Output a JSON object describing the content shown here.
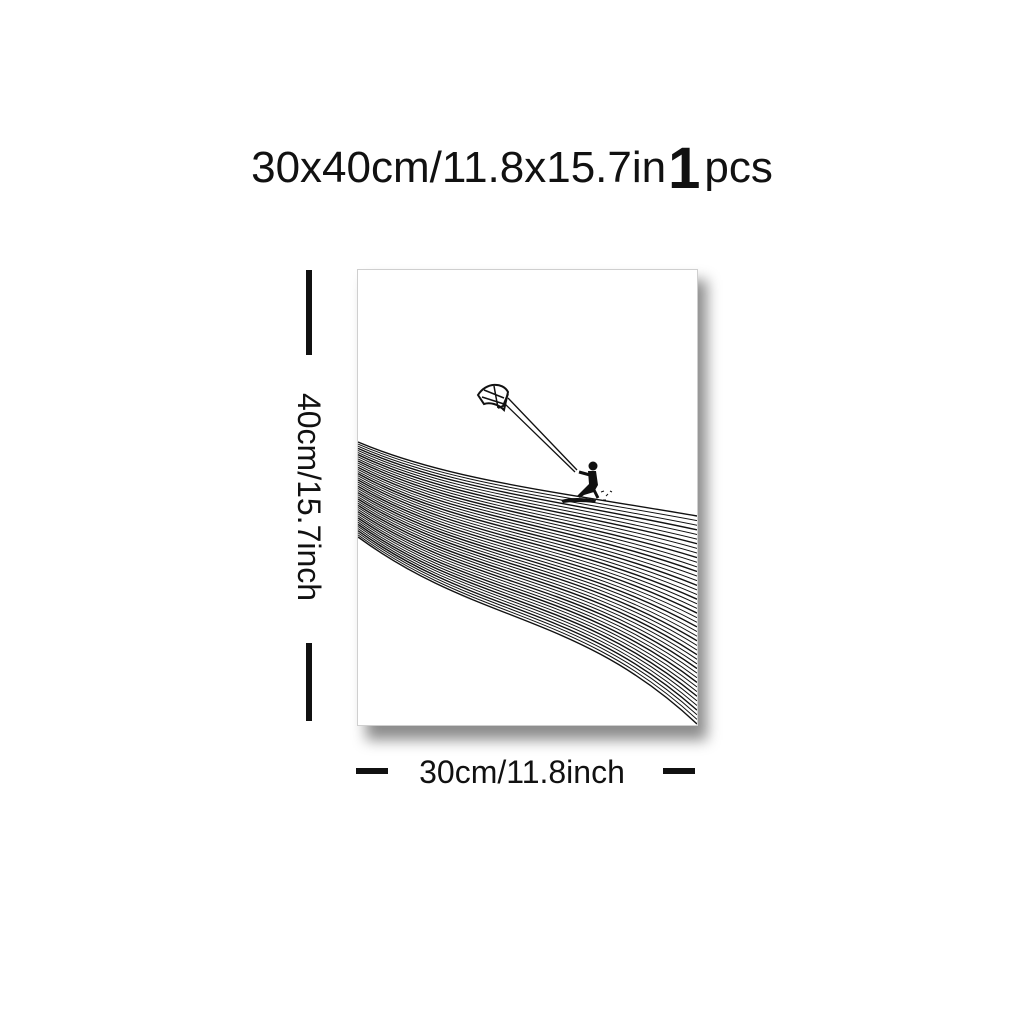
{
  "title": {
    "size_text": "30x40cm/11.8x15.7in",
    "quantity": "1",
    "unit": "pcs"
  },
  "dimensions": {
    "height_label": "40cm/15.7inch",
    "width_label": "30cm/11.8inch"
  },
  "artwork": {
    "subject": "kitesurfer riding flowing lines",
    "palette": {
      "ink": "#111111",
      "paper": "#ffffff"
    }
  }
}
